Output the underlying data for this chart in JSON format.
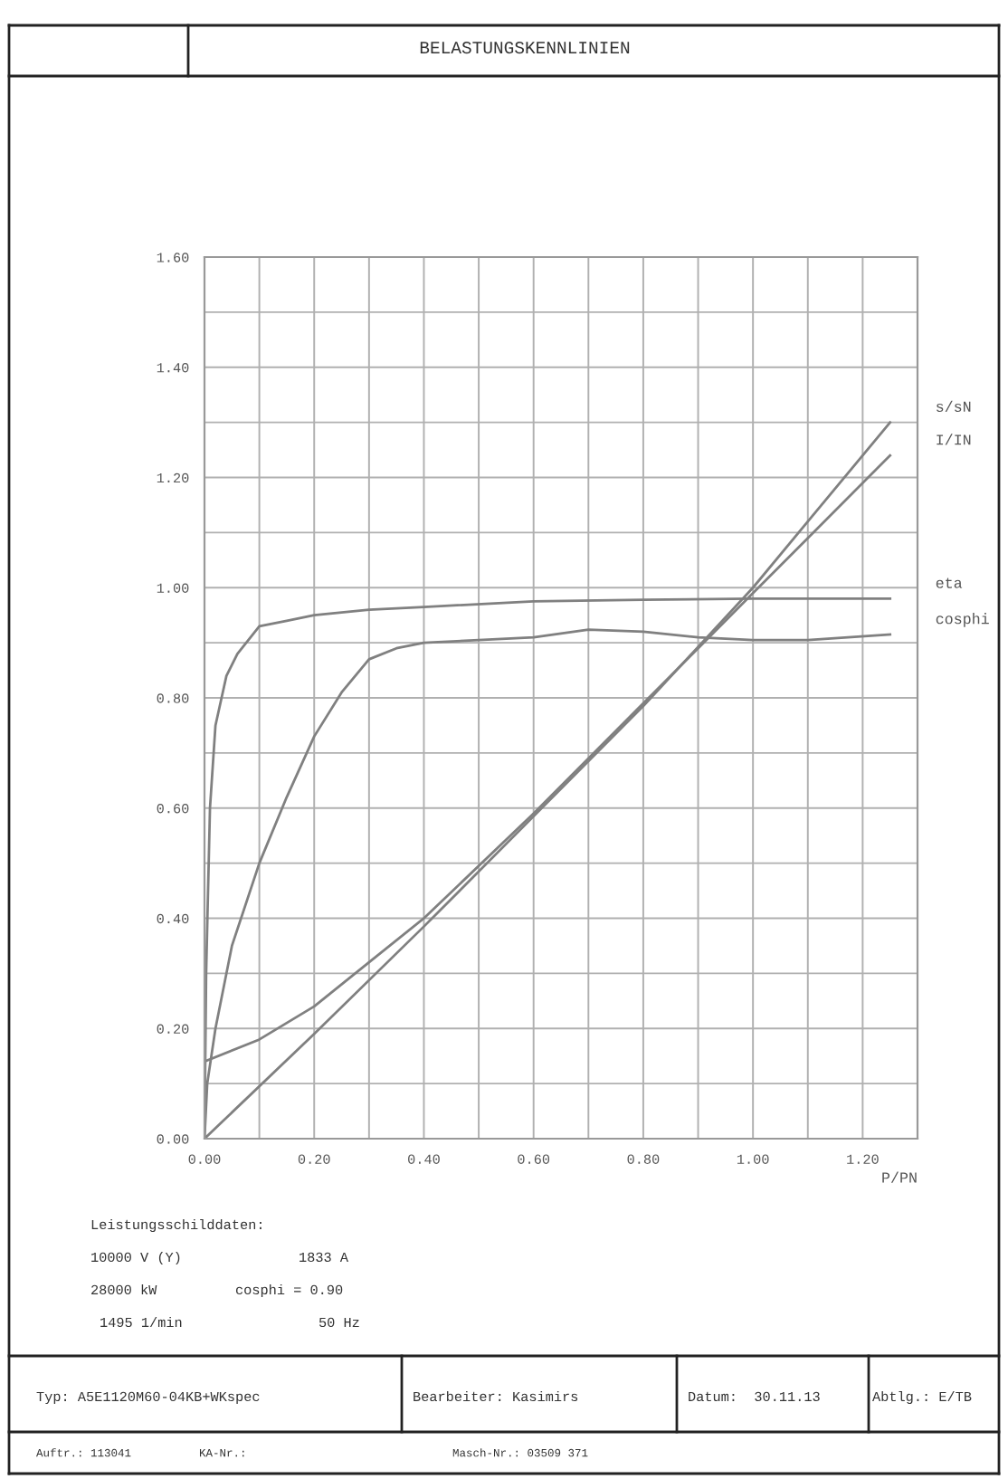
{
  "chart_data": {
    "type": "line",
    "title": "BELASTUNGSKENNLINIEN",
    "xlabel": "P/PN",
    "xlim": [
      0,
      1.3
    ],
    "ylim": [
      0,
      1.6
    ],
    "xticks": [
      {
        "value": 0,
        "label": "0.00"
      },
      {
        "value": 0.1,
        "label": null
      },
      {
        "value": 0.2,
        "label": "0.20"
      },
      {
        "value": 0.3,
        "label": null
      },
      {
        "value": 0.4,
        "label": "0.40"
      },
      {
        "value": 0.5,
        "label": null
      },
      {
        "value": 0.6,
        "label": "0.60"
      },
      {
        "value": 0.7,
        "label": null
      },
      {
        "value": 0.8,
        "label": "0.80"
      },
      {
        "value": 0.9,
        "label": null
      },
      {
        "value": 1.0,
        "label": "1.00"
      },
      {
        "value": 1.1,
        "label": null
      },
      {
        "value": 1.2,
        "label": "1.20"
      }
    ],
    "yticks": [
      {
        "value": 0,
        "label": "0.00"
      },
      {
        "value": 0.1,
        "label": null
      },
      {
        "value": 0.2,
        "label": "0.20"
      },
      {
        "value": 0.3,
        "label": null
      },
      {
        "value": 0.4,
        "label": "0.40"
      },
      {
        "value": 0.5,
        "label": null
      },
      {
        "value": 0.6,
        "label": "0.60"
      },
      {
        "value": 0.7,
        "label": null
      },
      {
        "value": 0.8,
        "label": "0.80"
      },
      {
        "value": 0.9,
        "label": null
      },
      {
        "value": 1.0,
        "label": "1.00"
      },
      {
        "value": 1.1,
        "label": null
      },
      {
        "value": 1.2,
        "label": "1.20"
      },
      {
        "value": 1.3,
        "label": null
      },
      {
        "value": 1.4,
        "label": "1.40"
      },
      {
        "value": 1.5,
        "label": null
      },
      {
        "value": 1.6,
        "label": "1.60"
      }
    ],
    "grid": true,
    "legend": false,
    "marker": "none",
    "line_style": "solid",
    "series": [
      {
        "name": "s/sN",
        "color": "#808080",
        "x": [
          0,
          0.2,
          0.4,
          0.6,
          0.8,
          1.0,
          1.1,
          1.25
        ],
        "values": [
          0,
          0.19,
          0.385,
          0.585,
          0.785,
          1.0,
          1.12,
          1.3
        ]
      },
      {
        "name": "I/IN",
        "color": "#808080",
        "x": [
          0,
          0.1,
          0.2,
          0.3,
          0.4,
          0.6,
          0.8,
          0.9,
          1.0,
          1.1,
          1.25
        ],
        "values": [
          0.14,
          0.18,
          0.24,
          0.32,
          0.4,
          0.59,
          0.79,
          0.89,
          0.99,
          1.09,
          1.24
        ]
      },
      {
        "name": "eta",
        "color": "#808080",
        "x": [
          0,
          0.003,
          0.01,
          0.02,
          0.04,
          0.06,
          0.1,
          0.15,
          0.2,
          0.3,
          0.4,
          0.6,
          0.8,
          1.0,
          1.25
        ],
        "values": [
          0,
          0.3,
          0.6,
          0.75,
          0.84,
          0.88,
          0.93,
          0.94,
          0.95,
          0.96,
          0.965,
          0.975,
          0.978,
          0.98,
          0.98
        ]
      },
      {
        "name": "cosphi",
        "color": "#808080",
        "x": [
          0,
          0.005,
          0.02,
          0.05,
          0.1,
          0.15,
          0.2,
          0.25,
          0.3,
          0.35,
          0.4,
          0.5,
          0.6,
          0.7,
          0.8,
          0.9,
          1.0,
          1.1,
          1.25
        ],
        "values": [
          0,
          0.1,
          0.2,
          0.35,
          0.5,
          0.62,
          0.73,
          0.81,
          0.87,
          0.89,
          0.9,
          0.905,
          0.91,
          0.924,
          0.92,
          0.91,
          0.905,
          0.905,
          0.915
        ]
      }
    ],
    "annotations": [
      "Leistungsschilddaten:",
      "10000 V (Y)",
      "1833 A",
      "28000 kW",
      "cosphi = 0.90",
      "1495 1/min",
      "50 Hz",
      "Typ: A5E1120M60-04KB+WKspec",
      "Bearbeiter: Kasimirs",
      "Datum:  30.11.13",
      "Abtlg.: E/TB",
      "Auftr.: 113041",
      "KA-Nr.:",
      "Masch-Nr.: 03509 371"
    ]
  }
}
